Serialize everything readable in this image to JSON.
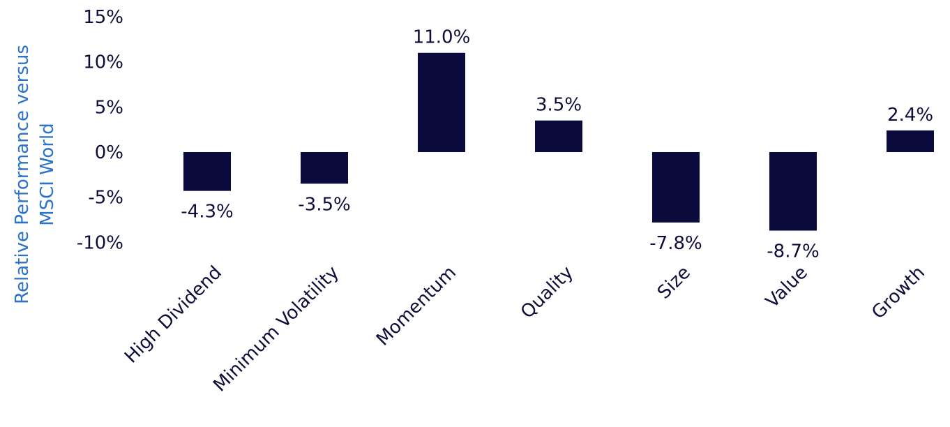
{
  "chart_data": {
    "type": "bar",
    "ylabel": "Relative Performance versus MSCI World",
    "ylabel_lines": [
      "Relative Performance versus",
      "MSCI World"
    ],
    "categories": [
      "High Dividend",
      "Minimum Volatility",
      "Momentum",
      "Quality",
      "Size",
      "Value",
      "Growth"
    ],
    "values": [
      -4.3,
      -3.5,
      11.0,
      3.5,
      -7.8,
      -8.7,
      2.4
    ],
    "data_labels": [
      "-4.3%",
      "-3.5%",
      "11.0%",
      "3.5%",
      "-7.8%",
      "-8.7%",
      "2.4%"
    ],
    "yticks": [
      15,
      10,
      5,
      0,
      -5,
      -10
    ],
    "ytick_labels": [
      "15%",
      "10%",
      "5%",
      "0%",
      "-5%",
      "-10%"
    ],
    "ylim": [
      -10,
      15
    ],
    "grid": false,
    "legend": "none",
    "colors": {
      "bar": "#0a0a3c",
      "text": "#0d0d3a",
      "ylabel": "#2b73c8"
    }
  }
}
